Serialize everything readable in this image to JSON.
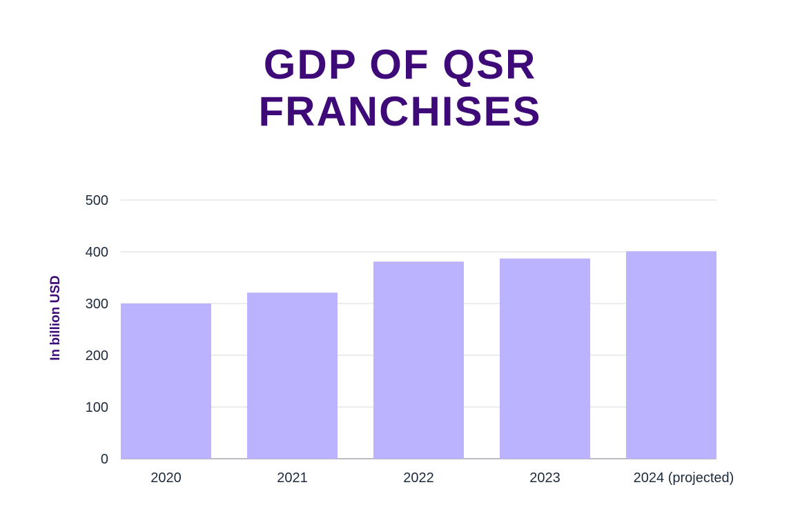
{
  "chart_data": {
    "type": "bar",
    "title_lines": [
      "GDP OF QSR",
      "FRANCHISES"
    ],
    "ylabel": "In billion USD",
    "xlabel": "",
    "categories": [
      "2020",
      "2021",
      "2022",
      "2023",
      "2024 (projected)"
    ],
    "values": [
      300,
      321,
      381,
      387,
      401
    ],
    "ylim": [
      0,
      500
    ],
    "yticks": [
      0,
      100,
      200,
      300,
      400,
      500
    ],
    "grid": true,
    "colors": {
      "bar": "#bbb3fd",
      "title": "#3d0a78",
      "grid": "#d9d9df",
      "axis": "#a6a6b0",
      "tick_text": "#1d2a3b"
    }
  }
}
